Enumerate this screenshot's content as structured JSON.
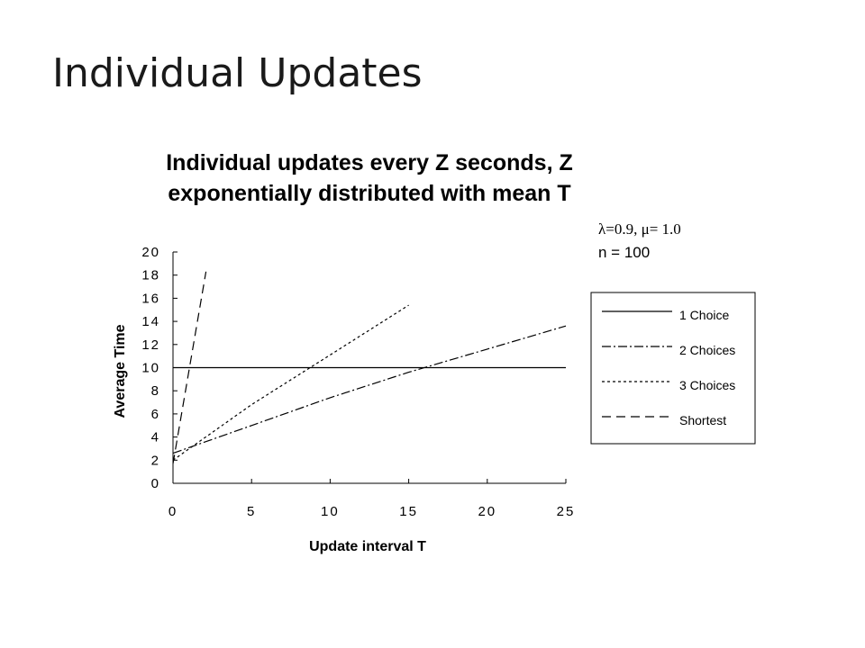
{
  "slide": {
    "title": "Individual Updates"
  },
  "chart_data": {
    "type": "line",
    "title_lines": [
      "Individual updates every Z seconds, Z",
      "exponentially distributed with mean T"
    ],
    "xlabel": "Update interval T",
    "ylabel": "Average Time",
    "xlim": [
      0,
      25
    ],
    "ylim": [
      0,
      20
    ],
    "xticks": [
      0,
      5,
      10,
      15,
      20,
      25
    ],
    "yticks": [
      0,
      2,
      4,
      6,
      8,
      10,
      12,
      14,
      16,
      18,
      20
    ],
    "params": [
      "λ=0.9, μ= 1.0",
      "n = 100"
    ],
    "grid": false,
    "legend_position": "right",
    "series": [
      {
        "name": "1 Choice",
        "style": "solid",
        "x": [
          0,
          25
        ],
        "y": [
          10,
          10
        ]
      },
      {
        "name": "2 Choices",
        "style": "dashdot",
        "x": [
          0,
          5,
          10,
          15,
          20,
          25
        ],
        "y": [
          2.6,
          5.0,
          7.4,
          9.6,
          11.6,
          13.6
        ]
      },
      {
        "name": "3 Choices",
        "style": "dotted",
        "x": [
          0,
          5,
          10,
          15
        ],
        "y": [
          2.0,
          6.8,
          11.1,
          15.4
        ]
      },
      {
        "name": "Shortest",
        "style": "dashed",
        "x": [
          0,
          2.1
        ],
        "y": [
          1.7,
          18.3
        ]
      }
    ]
  }
}
